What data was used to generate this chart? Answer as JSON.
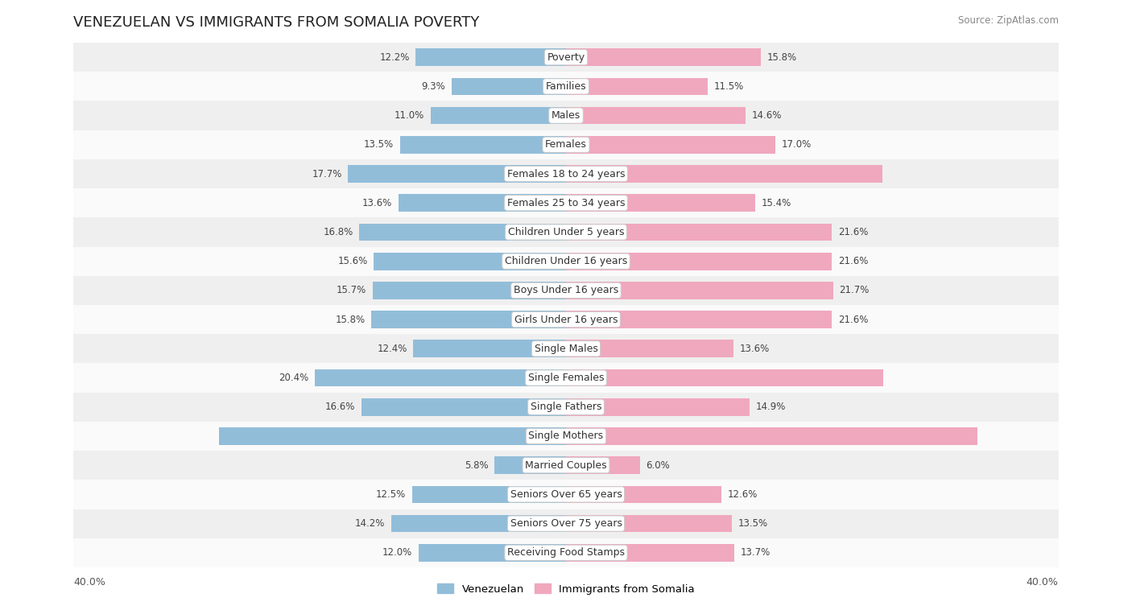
{
  "title": "VENEZUELAN VS IMMIGRANTS FROM SOMALIA POVERTY",
  "source": "Source: ZipAtlas.com",
  "categories": [
    "Poverty",
    "Families",
    "Males",
    "Females",
    "Females 18 to 24 years",
    "Females 25 to 34 years",
    "Children Under 5 years",
    "Children Under 16 years",
    "Boys Under 16 years",
    "Girls Under 16 years",
    "Single Males",
    "Single Females",
    "Single Fathers",
    "Single Mothers",
    "Married Couples",
    "Seniors Over 65 years",
    "Seniors Over 75 years",
    "Receiving Food Stamps"
  ],
  "venezuelan": [
    12.2,
    9.3,
    11.0,
    13.5,
    17.7,
    13.6,
    16.8,
    15.6,
    15.7,
    15.8,
    12.4,
    20.4,
    16.6,
    28.2,
    5.8,
    12.5,
    14.2,
    12.0
  ],
  "somalia": [
    15.8,
    11.5,
    14.6,
    17.0,
    25.7,
    15.4,
    21.6,
    21.6,
    21.7,
    21.6,
    13.6,
    25.8,
    14.9,
    33.4,
    6.0,
    12.6,
    13.5,
    13.7
  ],
  "venezuelan_color": "#92bdd9",
  "somalia_color": "#f0a8be",
  "bg_light": "#efefef",
  "bg_dark": "#fafafa",
  "axis_limit": 40.0,
  "bar_height": 0.6,
  "label_fontsize": 9,
  "value_fontsize": 8.5,
  "title_fontsize": 13,
  "legend_labels": [
    "Venezuelan",
    "Immigrants from Somalia"
  ],
  "inside_label_threshold_ven": 22.0,
  "inside_label_threshold_som": 24.0
}
